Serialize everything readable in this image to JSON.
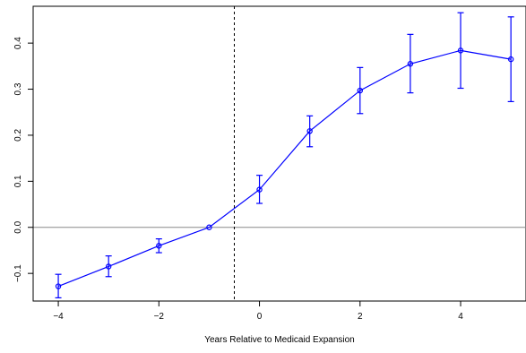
{
  "chart_data": {
    "type": "line",
    "title": "",
    "xlabel": "Years Relative to Medicaid Expansion",
    "ylabel": "",
    "xlim": [
      -4.5,
      5.3
    ],
    "ylim": [
      -0.16,
      0.48
    ],
    "x_ticks": [
      -4,
      -2,
      0,
      2,
      4
    ],
    "x_tick_labels": [
      "−4",
      "−2",
      "0",
      "2",
      "4"
    ],
    "y_ticks": [
      -0.1,
      0.0,
      0.1,
      0.2,
      0.3,
      0.4
    ],
    "y_tick_labels": [
      "−0.1",
      "0.0",
      "0.1",
      "0.2",
      "0.3",
      "0.4"
    ],
    "reference_hline": 0,
    "reference_vline": -0.5,
    "grid": false,
    "legend": "none",
    "series": [
      {
        "color": "#0000ff",
        "x": [
          -4,
          -3,
          -2,
          -1,
          0,
          1,
          2,
          3,
          4,
          5
        ],
        "y": [
          -0.128,
          -0.085,
          -0.04,
          0.0,
          0.082,
          0.209,
          0.297,
          0.355,
          0.384,
          0.365
        ],
        "ci_low": [
          -0.153,
          -0.107,
          -0.055,
          0.0,
          0.052,
          0.175,
          0.247,
          0.292,
          0.302,
          0.273
        ],
        "ci_high": [
          -0.102,
          -0.062,
          -0.025,
          0.0,
          0.113,
          0.242,
          0.347,
          0.419,
          0.466,
          0.457
        ]
      }
    ]
  }
}
